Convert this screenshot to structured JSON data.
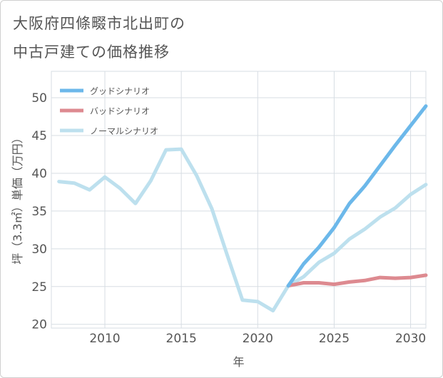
{
  "page": {
    "title_line1": "大阪府四條畷市北出町の",
    "title_line2": "中古戸建ての価格推移"
  },
  "chart_data": {
    "type": "line",
    "title": "大阪府四條畷市北出町の中古戸建ての価格推移",
    "xlabel": "年",
    "ylabel": "坪（3.3㎡）単価（万円）",
    "xlim": [
      2006.5,
      2031
    ],
    "ylim": [
      19.5,
      53.5
    ],
    "xticks": [
      2010,
      2015,
      2020,
      2025,
      2030
    ],
    "yticks": [
      20,
      25,
      30,
      35,
      40,
      45,
      50
    ],
    "legend_position": "top-left",
    "series": [
      {
        "name": "グッドシナリオ",
        "color": "#6cb8ea",
        "x": [
          2022,
          2023,
          2024,
          2025,
          2026,
          2027,
          2028,
          2029,
          2030,
          2031
        ],
        "values": [
          25.1,
          28.0,
          30.2,
          32.8,
          36.0,
          38.3,
          41.0,
          43.7,
          46.3,
          48.9
        ]
      },
      {
        "name": "バッドシナリオ",
        "color": "#dd8a90",
        "x": [
          2022,
          2023,
          2024,
          2025,
          2026,
          2027,
          2028,
          2029,
          2030,
          2031
        ],
        "values": [
          25.1,
          25.5,
          25.5,
          25.3,
          25.6,
          25.8,
          26.2,
          26.1,
          26.2,
          26.5
        ]
      },
      {
        "name": "ノーマルシナリオ",
        "color": "#bde0ee",
        "x": [
          2007,
          2008,
          2009,
          2010,
          2011,
          2012,
          2013,
          2014,
          2015,
          2016,
          2017,
          2018,
          2019,
          2020,
          2021,
          2022,
          2023,
          2024,
          2025,
          2026,
          2027,
          2028,
          2029,
          2030,
          2031
        ],
        "values": [
          38.9,
          38.7,
          37.8,
          39.5,
          38.0,
          36.0,
          39.0,
          43.1,
          43.2,
          39.7,
          35.3,
          29.2,
          23.2,
          23.0,
          21.8,
          25.1,
          26.3,
          28.2,
          29.4,
          31.3,
          32.6,
          34.2,
          35.4,
          37.2,
          38.5
        ]
      }
    ]
  }
}
